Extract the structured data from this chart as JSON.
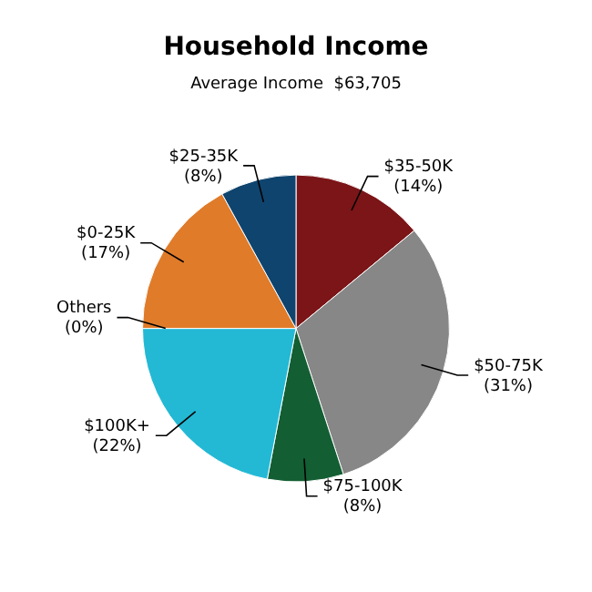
{
  "chart_data": {
    "type": "pie",
    "title": "Household Income",
    "subtitle": "Average Income  $63,705",
    "categories": [
      "$35-50K",
      "$50-75K",
      "$75-100K",
      "$100K+",
      "Others",
      "$0-25K",
      "$25-35K"
    ],
    "values": [
      14,
      31,
      8,
      22,
      0,
      17,
      8
    ],
    "value_labels": [
      "(14%)",
      "(31%)",
      "(8%)",
      "(22%)",
      "(0%)",
      "(17%)",
      "(8%)"
    ],
    "colors": [
      "#7b1518",
      "#878787",
      "#135e33",
      "#23b9d5",
      "#9a9a9a",
      "#e07b29",
      "#0f446e"
    ],
    "legend": false
  }
}
